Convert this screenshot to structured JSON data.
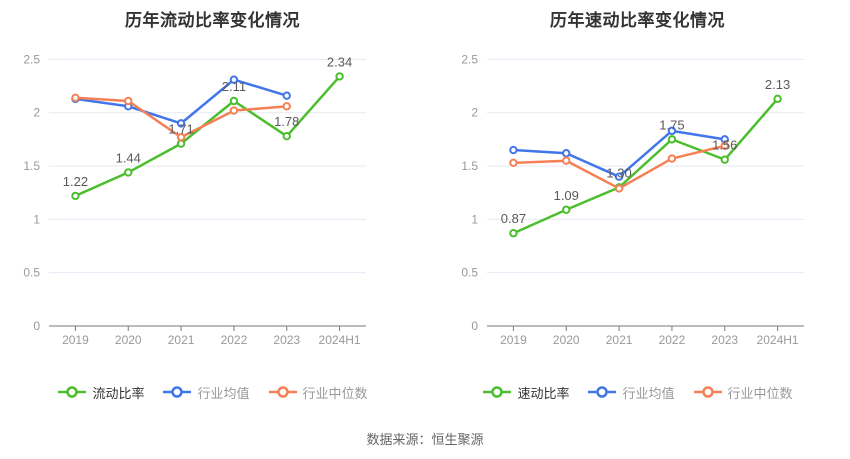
{
  "page": {
    "background": "#ffffff",
    "caption": "数据来源：恒生聚源"
  },
  "palette": {
    "green": "#4bbe2d",
    "blue": "#4176e8",
    "orange": "#f58055",
    "title_color": "#333333",
    "axis_label_color": "#999999",
    "grid_color": "#e4eaf4",
    "axis_line_color": "#7a7a7a",
    "data_label_color": "#5a5a5a",
    "legend_active_color": "#333333",
    "legend_inactive_color": "#999999"
  },
  "chart_data": [
    {
      "type": "line",
      "title": "历年流动比率变化情况",
      "categories": [
        "2019",
        "2020",
        "2021",
        "2022",
        "2023",
        "2024H1"
      ],
      "ylim": [
        0,
        2.5
      ],
      "ytick_values": [
        0,
        0.5,
        1,
        1.5,
        2,
        2.5
      ],
      "ytick_labels": [
        "0",
        "0.5",
        "1",
        "1.5",
        "2",
        "2.5"
      ],
      "grid": true,
      "legend_position": "bottom",
      "series": [
        {
          "name": "流动比率",
          "color": "green",
          "values": [
            1.22,
            1.44,
            1.71,
            2.11,
            1.78,
            2.34
          ],
          "point_labels": [
            "1.22",
            "1.44",
            "1.71",
            "2.11",
            "1.78",
            "2.34"
          ],
          "legend_active": true
        },
        {
          "name": "行业均值",
          "color": "blue",
          "values": [
            2.13,
            2.06,
            1.9,
            2.31,
            2.16,
            null
          ],
          "legend_active": false
        },
        {
          "name": "行业中位数",
          "color": "orange",
          "values": [
            2.14,
            2.11,
            1.77,
            2.02,
            2.06,
            null
          ],
          "legend_active": false
        }
      ]
    },
    {
      "type": "line",
      "title": "历年速动比率变化情况",
      "categories": [
        "2019",
        "2020",
        "2021",
        "2022",
        "2023",
        "2024H1"
      ],
      "ylim": [
        0,
        2.5
      ],
      "ytick_values": [
        0,
        0.5,
        1,
        1.5,
        2,
        2.5
      ],
      "ytick_labels": [
        "0",
        "0.5",
        "1",
        "1.5",
        "2",
        "2.5"
      ],
      "grid": true,
      "legend_position": "bottom",
      "series": [
        {
          "name": "速动比率",
          "color": "green",
          "values": [
            0.87,
            1.09,
            1.3,
            1.75,
            1.56,
            2.13
          ],
          "point_labels": [
            "0.87",
            "1.09",
            "1.30",
            "1.75",
            "1.56",
            "2.13"
          ],
          "legend_active": true
        },
        {
          "name": "行业均值",
          "color": "blue",
          "values": [
            1.65,
            1.62,
            1.4,
            1.83,
            1.75,
            null
          ],
          "legend_active": false
        },
        {
          "name": "行业中位数",
          "color": "orange",
          "values": [
            1.53,
            1.55,
            1.29,
            1.57,
            1.69,
            null
          ],
          "legend_active": false
        }
      ]
    }
  ]
}
